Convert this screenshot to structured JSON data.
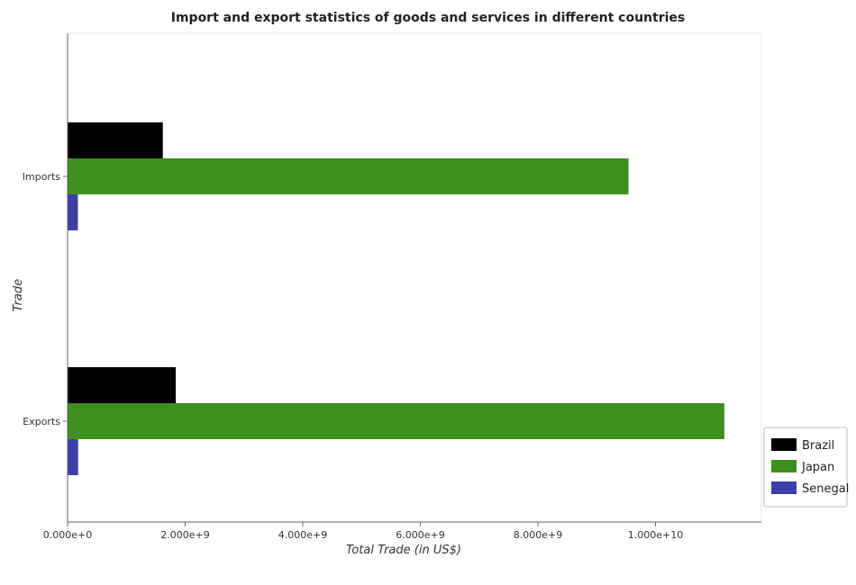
{
  "chart_data": {
    "type": "bar",
    "orientation": "horizontal",
    "title": "Import and export statistics of goods and services in different countries",
    "xlabel": "Total Trade (in US$)",
    "ylabel": "Trade",
    "categories": [
      "Exports",
      "Imports"
    ],
    "xlim": [
      0,
      11800000000
    ],
    "xticks": [
      0,
      2000000000,
      4000000000,
      6000000000,
      8000000000,
      10000000000
    ],
    "xtick_labels": [
      "0.000e+0",
      "2.000e+9",
      "4.000e+9",
      "6.000e+9",
      "8.000e+9",
      "1.000e+10"
    ],
    "series": [
      {
        "name": "Brazil",
        "color": "#000000",
        "values": [
          1840000000,
          1620000000
        ]
      },
      {
        "name": "Japan",
        "color": "#3f8f1e",
        "values": [
          11170000000,
          9540000000
        ]
      },
      {
        "name": "Senegal",
        "color": "#3b3fa8",
        "values": [
          180000000,
          175000000
        ]
      }
    ],
    "grid": false,
    "legend_position": "bottom-right"
  }
}
